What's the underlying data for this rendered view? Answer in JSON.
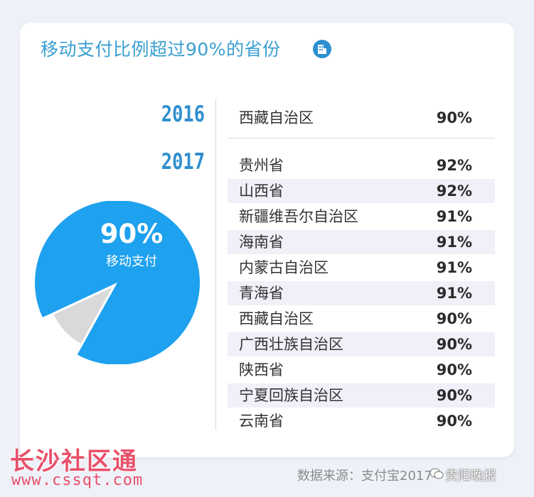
{
  "title": "移动支付比例超过90%的省份",
  "title_icon": "building-icon",
  "colors": {
    "accent": "#3a9fd0",
    "year": "#2f8fce",
    "pie_main": "#1ea1ef",
    "pie_rest": "#d9d9d9",
    "row_shade": "#eff0f8",
    "watermark": "#e8506a"
  },
  "chart_data": [
    {
      "type": "table",
      "title": "移动支付比例超过90%的省份",
      "groups": [
        {
          "year": "2016",
          "rows": [
            {
              "province": "西藏自治区",
              "value": 90,
              "label": "90%"
            }
          ]
        },
        {
          "year": "2017",
          "rows": [
            {
              "province": "贵州省",
              "value": 92,
              "label": "92%"
            },
            {
              "province": "山西省",
              "value": 92,
              "label": "92%"
            },
            {
              "province": "新疆维吾尔自治区",
              "value": 91,
              "label": "91%"
            },
            {
              "province": "海南省",
              "value": 91,
              "label": "91%"
            },
            {
              "province": "内蒙古自治区",
              "value": 91,
              "label": "91%"
            },
            {
              "province": "青海省",
              "value": 91,
              "label": "91%"
            },
            {
              "province": "西藏自治区",
              "value": 90,
              "label": "90%"
            },
            {
              "province": "广西壮族自治区",
              "value": 90,
              "label": "90%"
            },
            {
              "province": "陕西省",
              "value": 90,
              "label": "90%"
            },
            {
              "province": "宁夏回族自治区",
              "value": 90,
              "label": "90%"
            },
            {
              "province": "云南省",
              "value": 90,
              "label": "90%"
            }
          ]
        }
      ]
    },
    {
      "type": "pie",
      "slices": [
        {
          "value": 90,
          "label_value": "90%",
          "label": "移动支付",
          "color": "#1ea1ef"
        },
        {
          "value": 10,
          "color": "#d9d9d9"
        }
      ]
    }
  ],
  "source": "数据来源：支付宝2017",
  "watermarks": {
    "site_name": "长沙社区通",
    "site_url": "www.cssqt.com",
    "wechat": "贵阳晚报"
  }
}
